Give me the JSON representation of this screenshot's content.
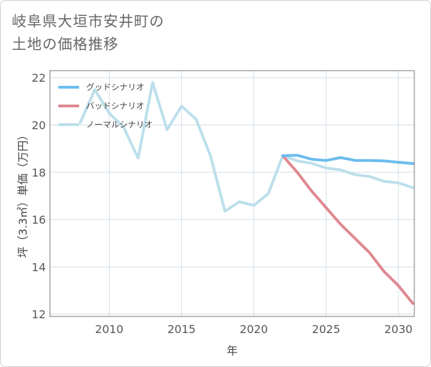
{
  "title_lines": [
    "岐阜県大垣市安井町の",
    "土地の価格推移"
  ],
  "chart_data": {
    "type": "line",
    "title": "岐阜県大垣市安井町の土地の価格推移",
    "xlabel": "年",
    "ylabel": "坪（3.3㎡）単価（万円）",
    "xlim": [
      2005.9,
      2031.1
    ],
    "ylim": [
      11.9,
      22.3
    ],
    "x_ticks": [
      2010,
      2015,
      2020,
      2025,
      2030
    ],
    "y_ticks": [
      12,
      14,
      16,
      18,
      20,
      22
    ],
    "legend_position": "top-left",
    "series": [
      {
        "name": "グッドシナリオ",
        "color": "#6cbcee",
        "x": [
          2022,
          2023,
          2024,
          2025,
          2026,
          2027,
          2028,
          2029,
          2030,
          2031
        ],
        "y": [
          18.7,
          18.72,
          18.55,
          18.5,
          18.62,
          18.5,
          18.5,
          18.48,
          18.42,
          18.37
        ]
      },
      {
        "name": "バッドシナリオ",
        "color": "#e08890",
        "x": [
          2022,
          2023,
          2024,
          2025,
          2026,
          2027,
          2028,
          2029,
          2030,
          2031
        ],
        "y": [
          18.7,
          18.0,
          17.2,
          16.5,
          15.8,
          15.2,
          14.6,
          13.8,
          13.2,
          12.45
        ]
      },
      {
        "name": "ノーマルシナリオ",
        "color": "#bcdfeb",
        "x": [
          2008,
          2009,
          2010,
          2011,
          2012,
          2013,
          2014,
          2015,
          2016,
          2017,
          2018,
          2019,
          2020,
          2021,
          2022,
          2023,
          2024,
          2025,
          2026,
          2027,
          2028,
          2029,
          2030,
          2031
        ],
        "y": [
          20.1,
          21.5,
          20.5,
          19.9,
          18.6,
          21.8,
          19.8,
          20.8,
          20.25,
          18.7,
          16.35,
          16.75,
          16.6,
          17.1,
          18.7,
          18.48,
          18.38,
          18.18,
          18.1,
          17.9,
          17.82,
          17.62,
          17.55,
          17.35
        ]
      }
    ]
  }
}
